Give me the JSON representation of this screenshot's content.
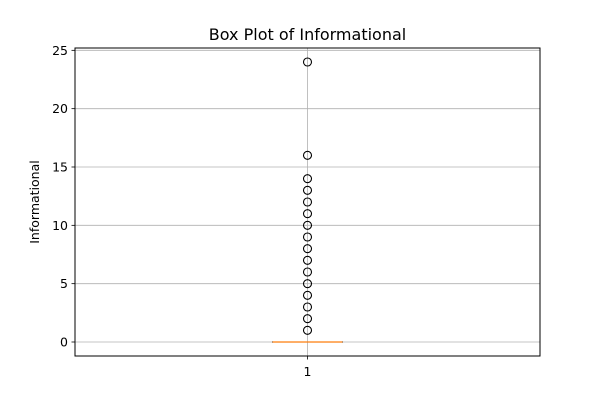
{
  "chart_data": {
    "type": "box",
    "title": "Box Plot of Informational",
    "xlabel": "",
    "ylabel": "Informational",
    "categories": [
      "1"
    ],
    "ylim": [
      -1.2,
      25.2
    ],
    "yticks": [
      0,
      5,
      10,
      15,
      20,
      25
    ],
    "grid": true,
    "box": {
      "q1": 0,
      "median": 0,
      "q3": 0,
      "whisker_low": 0,
      "whisker_high": 0
    },
    "outliers": [
      1,
      2,
      3,
      4,
      5,
      6,
      7,
      8,
      9,
      10,
      11,
      12,
      13,
      14,
      16,
      24
    ],
    "colors": {
      "median": "#ff7f0e",
      "box": "#000000",
      "grid": "#b0b0b0",
      "outlier_edge": "#000000"
    }
  }
}
